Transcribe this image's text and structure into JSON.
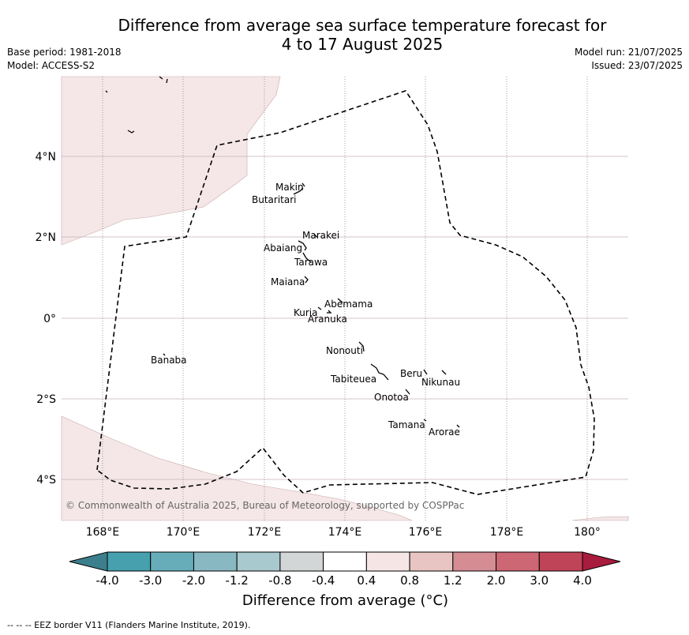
{
  "title_line1": "Difference from average sea surface temperature forecast for",
  "title_line2": "4 to 17 August 2025",
  "base_period": "Base period: 1981-2018",
  "model": "Model: ACCESS-S2",
  "model_run": "Model run: 21/07/2025",
  "issued": "Issued: 23/07/2025",
  "copyright": "© Commonwealth of Australia 2025, Bureau of Meteorology, supported by COSPPac",
  "lat_labels": [
    "4°N",
    "2°N",
    "0°",
    "2°S",
    "4°S"
  ],
  "lon_labels": [
    "168°E",
    "170°E",
    "172°E",
    "174°E",
    "176°E",
    "178°E",
    "180°"
  ],
  "places": [
    "Makin",
    "Butaritari",
    "Marakei",
    "Abaiang",
    "Tarawa",
    "Maiana",
    "Abemama",
    "Kuria",
    "Aranuka",
    "Banaba",
    "Nonouti",
    "Tabiteuea",
    "Beru",
    "Nikunau",
    "Onotoa",
    "Tamana",
    "Arorae"
  ],
  "colorbar": {
    "ticks": [
      "-4.0",
      "-3.0",
      "-2.0",
      "-1.2",
      "-0.8",
      "-0.4",
      "0.4",
      "0.8",
      "1.2",
      "2.0",
      "3.0",
      "4.0"
    ],
    "colors": [
      "#3c7f8c",
      "#46a0ae",
      "#66adb9",
      "#88b8c2",
      "#a8c9cd",
      "#d3d6d7",
      "#ffffff",
      "#f5e6e5",
      "#e8c5c2",
      "#d58c93",
      "#cc6773",
      "#c04457",
      "#a81c3e"
    ],
    "label": "Difference from average (°C)"
  },
  "eez_note": "--  --  -- EEZ border V11 (Flanders Marine Institute, 2019).",
  "map_fill_color": "#f5e7e7"
}
